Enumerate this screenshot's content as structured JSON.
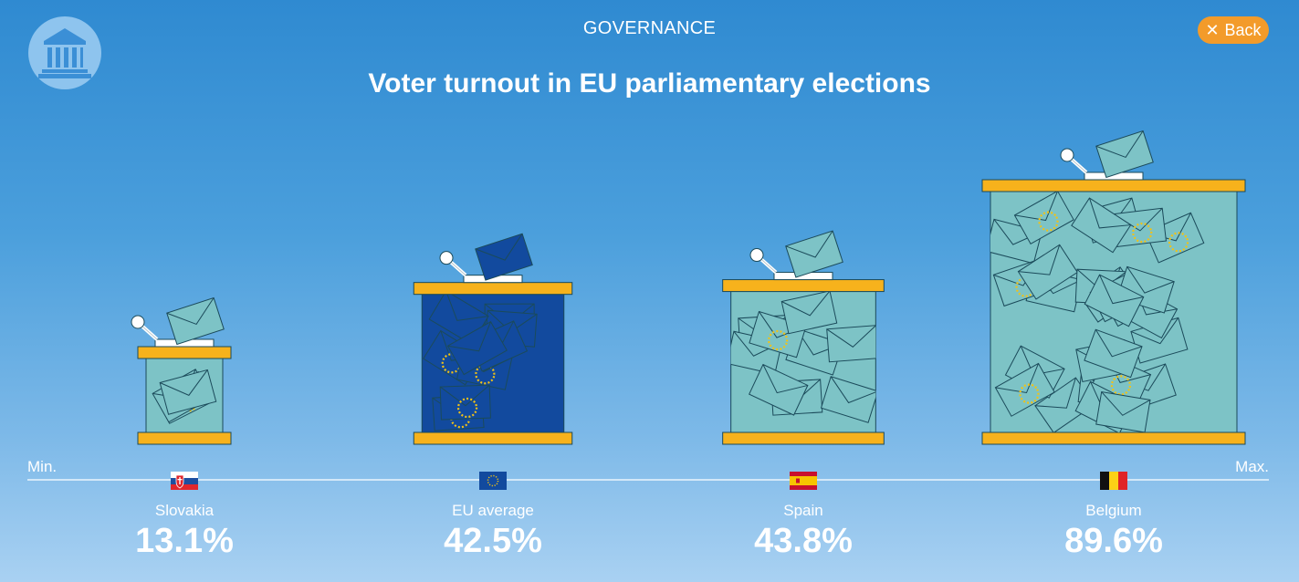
{
  "header": {
    "section": "GOVERNANCE",
    "title": "Voter turnout in EU parliamentary elections",
    "back_label": "Back",
    "logo_icon": "parliament-building-icon"
  },
  "axis": {
    "min_label": "Min.",
    "max_label": "Max."
  },
  "colors": {
    "accent": "#f39b2a",
    "box_fill": "#7dc3c6",
    "box_fill_highlight": "#124a9e",
    "box_trim": "#f7b21c",
    "stars": "#f2c215"
  },
  "chart_data": {
    "type": "bar",
    "title": "Voter turnout in EU parliamentary elections",
    "categories": [
      "Slovakia",
      "EU average",
      "Spain",
      "Belgium"
    ],
    "values": [
      13.1,
      42.5,
      43.8,
      89.6
    ],
    "value_labels": [
      "13.1%",
      "42.5%",
      "43.8%",
      "89.6%"
    ],
    "unit": "%",
    "highlight": "EU average",
    "xlabel": "",
    "ylabel": "",
    "scale_labels": [
      "Min.",
      "Max."
    ]
  },
  "countries": [
    {
      "name": "Slovakia",
      "value_label": "13.1%",
      "flag": "slovakia-flag"
    },
    {
      "name": "EU average",
      "value_label": "42.5%",
      "flag": "eu-flag"
    },
    {
      "name": "Spain",
      "value_label": "43.8%",
      "flag": "spain-flag"
    },
    {
      "name": "Belgium",
      "value_label": "89.6%",
      "flag": "belgium-flag"
    }
  ]
}
